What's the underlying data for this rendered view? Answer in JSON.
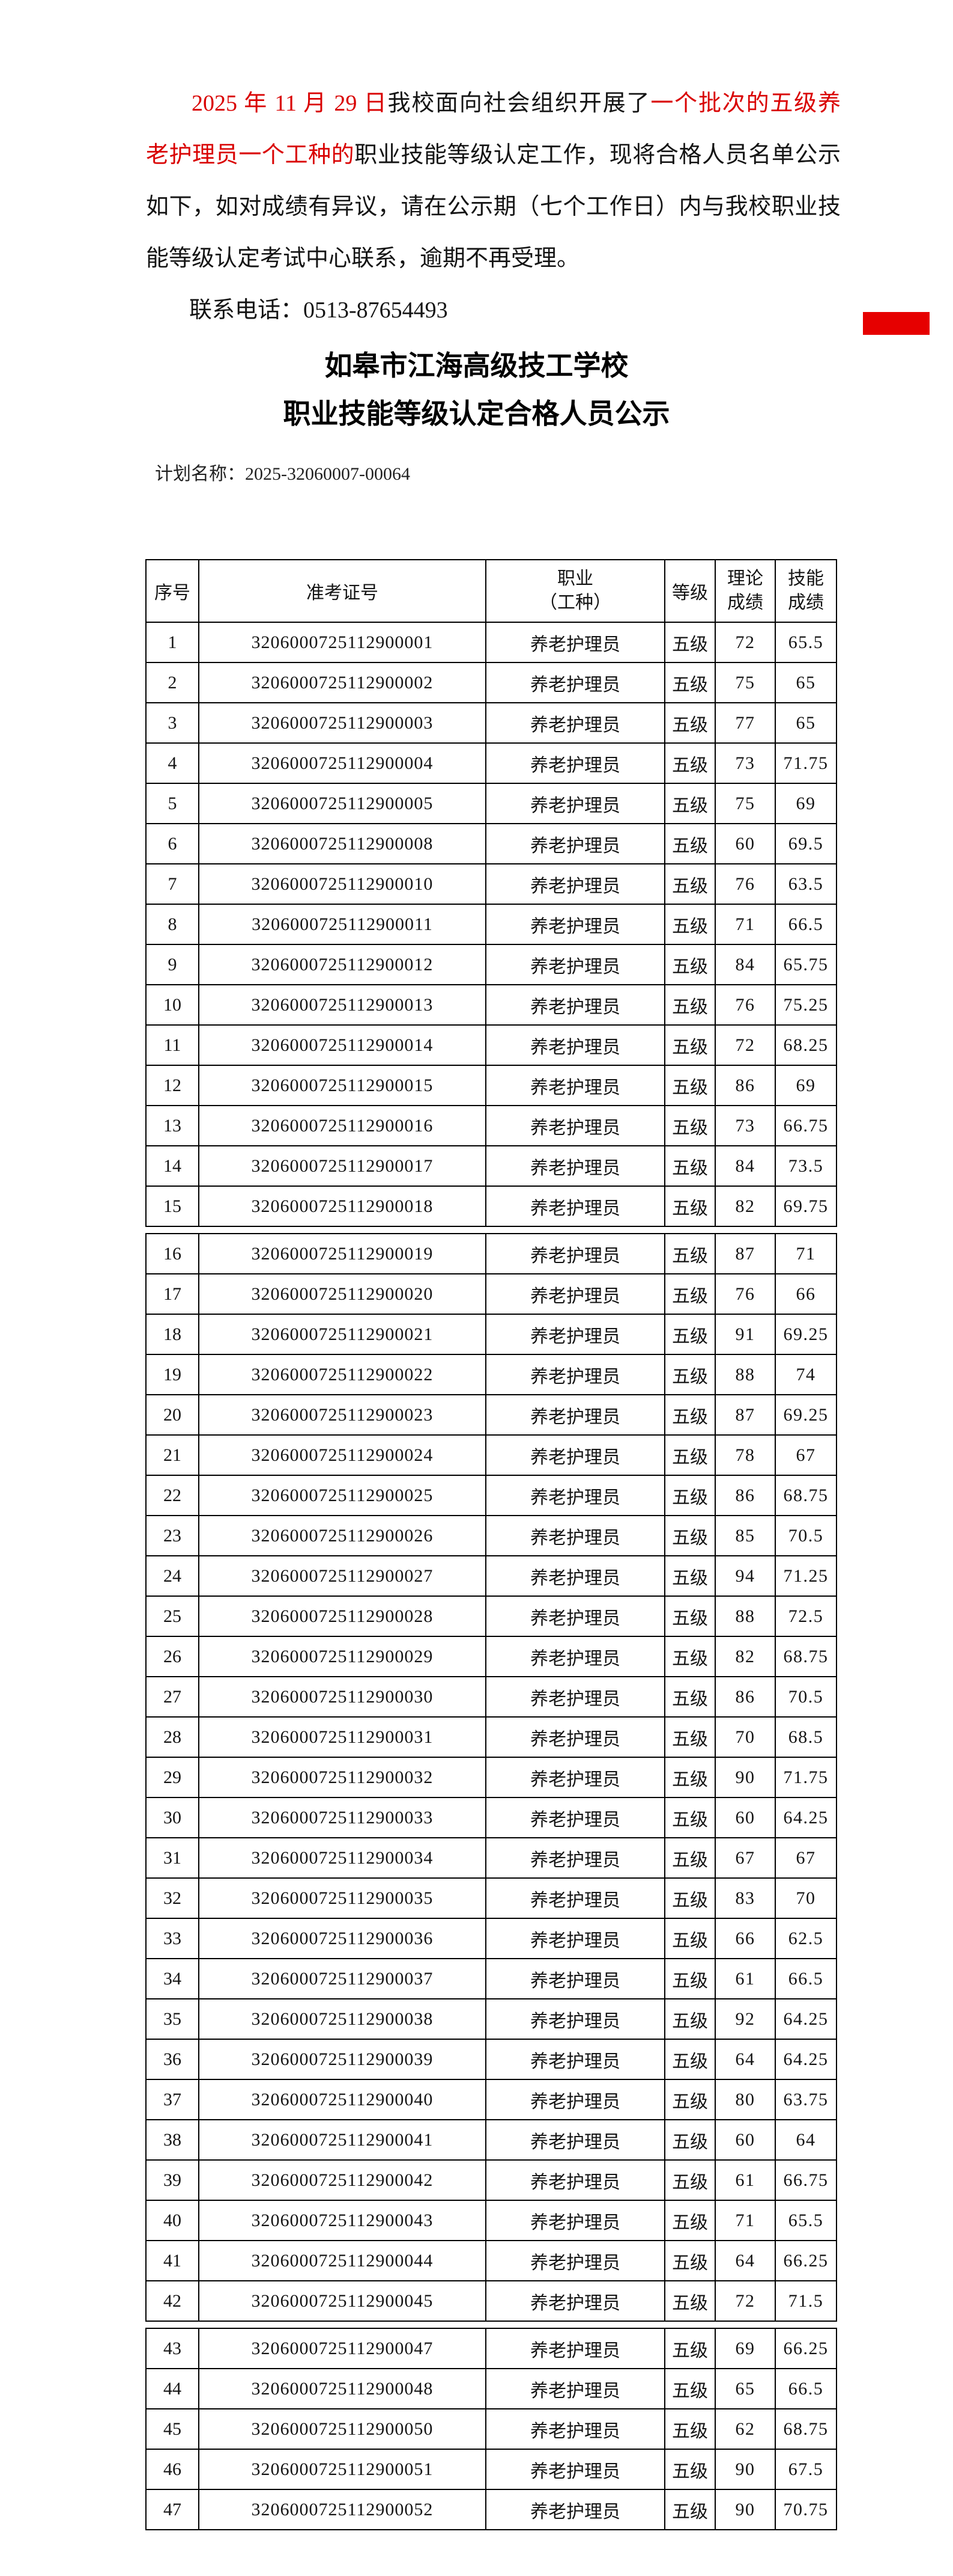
{
  "colors": {
    "text_red": "#d90000",
    "badge_red": "#e60000"
  },
  "intro": {
    "line1_red1": "2025 年 11 月 29 日",
    "line1_black": "我校面向社会组织开展了",
    "line1_red2": "一个批次的五级养",
    "line2_red": "老护理员一个工种的",
    "line2_black": "职业技能等级认定工作，现将合格人员名单公示",
    "line3": "如下，如对成绩有异议，请在公示期（七个工作日）内与我校职业技",
    "line4": "能等级认定考试中心联系，逾期不再受理。",
    "contact": "联系电话：0513-87654493"
  },
  "title": {
    "line1": "如皋市江海高级技工学校",
    "line2": "职业技能等级认定合格人员公示"
  },
  "plan": {
    "label": "计划名称：",
    "value": "2025-32060007-00064"
  },
  "table": {
    "headers": {
      "index": "序号",
      "ticket": "准考证号",
      "occupation": [
        "职业",
        "（工种）"
      ],
      "level": "等级",
      "theory": [
        "理论",
        "成绩"
      ],
      "skill": [
        "技能",
        "成绩"
      ]
    },
    "segments": [
      [
        0,
        15
      ],
      [
        15,
        42
      ],
      [
        42,
        47
      ]
    ],
    "rows": [
      [
        "1",
        "3206000725112900001",
        "养老护理员",
        "五级",
        "72",
        "65.5"
      ],
      [
        "2",
        "3206000725112900002",
        "养老护理员",
        "五级",
        "75",
        "65"
      ],
      [
        "3",
        "3206000725112900003",
        "养老护理员",
        "五级",
        "77",
        "65"
      ],
      [
        "4",
        "3206000725112900004",
        "养老护理员",
        "五级",
        "73",
        "71.75"
      ],
      [
        "5",
        "3206000725112900005",
        "养老护理员",
        "五级",
        "75",
        "69"
      ],
      [
        "6",
        "3206000725112900008",
        "养老护理员",
        "五级",
        "60",
        "69.5"
      ],
      [
        "7",
        "3206000725112900010",
        "养老护理员",
        "五级",
        "76",
        "63.5"
      ],
      [
        "8",
        "3206000725112900011",
        "养老护理员",
        "五级",
        "71",
        "66.5"
      ],
      [
        "9",
        "3206000725112900012",
        "养老护理员",
        "五级",
        "84",
        "65.75"
      ],
      [
        "10",
        "3206000725112900013",
        "养老护理员",
        "五级",
        "76",
        "75.25"
      ],
      [
        "11",
        "3206000725112900014",
        "养老护理员",
        "五级",
        "72",
        "68.25"
      ],
      [
        "12",
        "3206000725112900015",
        "养老护理员",
        "五级",
        "86",
        "69"
      ],
      [
        "13",
        "3206000725112900016",
        "养老护理员",
        "五级",
        "73",
        "66.75"
      ],
      [
        "14",
        "3206000725112900017",
        "养老护理员",
        "五级",
        "84",
        "73.5"
      ],
      [
        "15",
        "3206000725112900018",
        "养老护理员",
        "五级",
        "82",
        "69.75"
      ],
      [
        "16",
        "3206000725112900019",
        "养老护理员",
        "五级",
        "87",
        "71"
      ],
      [
        "17",
        "3206000725112900020",
        "养老护理员",
        "五级",
        "76",
        "66"
      ],
      [
        "18",
        "3206000725112900021",
        "养老护理员",
        "五级",
        "91",
        "69.25"
      ],
      [
        "19",
        "3206000725112900022",
        "养老护理员",
        "五级",
        "88",
        "74"
      ],
      [
        "20",
        "3206000725112900023",
        "养老护理员",
        "五级",
        "87",
        "69.25"
      ],
      [
        "21",
        "3206000725112900024",
        "养老护理员",
        "五级",
        "78",
        "67"
      ],
      [
        "22",
        "3206000725112900025",
        "养老护理员",
        "五级",
        "86",
        "68.75"
      ],
      [
        "23",
        "3206000725112900026",
        "养老护理员",
        "五级",
        "85",
        "70.5"
      ],
      [
        "24",
        "3206000725112900027",
        "养老护理员",
        "五级",
        "94",
        "71.25"
      ],
      [
        "25",
        "3206000725112900028",
        "养老护理员",
        "五级",
        "88",
        "72.5"
      ],
      [
        "26",
        "3206000725112900029",
        "养老护理员",
        "五级",
        "82",
        "68.75"
      ],
      [
        "27",
        "3206000725112900030",
        "养老护理员",
        "五级",
        "86",
        "70.5"
      ],
      [
        "28",
        "3206000725112900031",
        "养老护理员",
        "五级",
        "70",
        "68.5"
      ],
      [
        "29",
        "3206000725112900032",
        "养老护理员",
        "五级",
        "90",
        "71.75"
      ],
      [
        "30",
        "3206000725112900033",
        "养老护理员",
        "五级",
        "60",
        "64.25"
      ],
      [
        "31",
        "3206000725112900034",
        "养老护理员",
        "五级",
        "67",
        "67"
      ],
      [
        "32",
        "3206000725112900035",
        "养老护理员",
        "五级",
        "83",
        "70"
      ],
      [
        "33",
        "3206000725112900036",
        "养老护理员",
        "五级",
        "66",
        "62.5"
      ],
      [
        "34",
        "3206000725112900037",
        "养老护理员",
        "五级",
        "61",
        "66.5"
      ],
      [
        "35",
        "3206000725112900038",
        "养老护理员",
        "五级",
        "92",
        "64.25"
      ],
      [
        "36",
        "3206000725112900039",
        "养老护理员",
        "五级",
        "64",
        "64.25"
      ],
      [
        "37",
        "3206000725112900040",
        "养老护理员",
        "五级",
        "80",
        "63.75"
      ],
      [
        "38",
        "3206000725112900041",
        "养老护理员",
        "五级",
        "60",
        "64"
      ],
      [
        "39",
        "3206000725112900042",
        "养老护理员",
        "五级",
        "61",
        "66.75"
      ],
      [
        "40",
        "3206000725112900043",
        "养老护理员",
        "五级",
        "71",
        "65.5"
      ],
      [
        "41",
        "3206000725112900044",
        "养老护理员",
        "五级",
        "64",
        "66.25"
      ],
      [
        "42",
        "3206000725112900045",
        "养老护理员",
        "五级",
        "72",
        "71.5"
      ],
      [
        "43",
        "3206000725112900047",
        "养老护理员",
        "五级",
        "69",
        "66.25"
      ],
      [
        "44",
        "3206000725112900048",
        "养老护理员",
        "五级",
        "65",
        "66.5"
      ],
      [
        "45",
        "3206000725112900050",
        "养老护理员",
        "五级",
        "62",
        "68.75"
      ],
      [
        "46",
        "3206000725112900051",
        "养老护理员",
        "五级",
        "90",
        "67.5"
      ],
      [
        "47",
        "3206000725112900052",
        "养老护理员",
        "五级",
        "90",
        "70.75"
      ]
    ]
  }
}
